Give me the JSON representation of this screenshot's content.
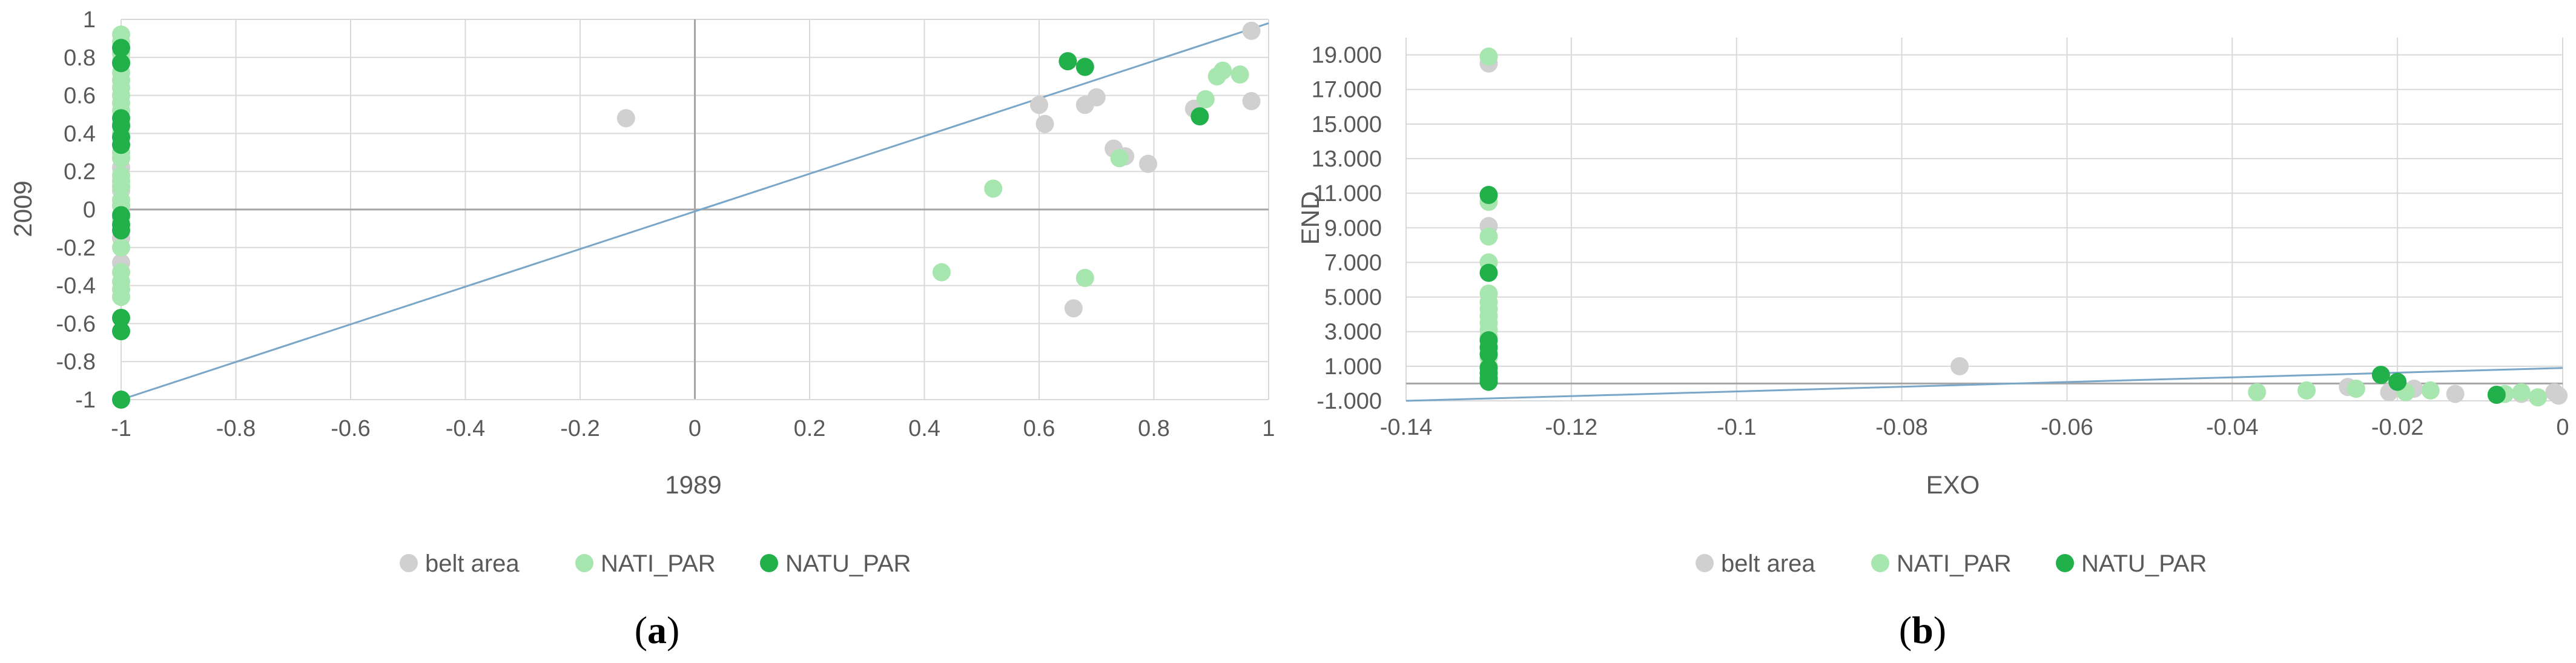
{
  "captions": [
    "a",
    "b"
  ],
  "colors": {
    "belt_area": "#d0d0d0",
    "NATI_PAR": "#a8e6b0",
    "NATU_PAR": "#22b04a",
    "trendline": "#7aa6c8",
    "grid": "#d9d9d9",
    "axis": "#a6a6a6"
  },
  "chart_data": [
    {
      "type": "scatter",
      "xlabel": "1989",
      "ylabel": "2009",
      "xlim": [
        -1,
        1
      ],
      "ylim": [
        -1,
        1
      ],
      "x_ticks": [
        "-1",
        "-0.8",
        "-0.6",
        "-0.4",
        "-0.2",
        "0",
        "0.2",
        "0.4",
        "0.6",
        "0.8",
        "1"
      ],
      "y_ticks": [
        "1",
        "0.8",
        "0.6",
        "0.4",
        "0.2",
        "0",
        "-0.2",
        "-0.4",
        "-0.6",
        "-0.8",
        "-1"
      ],
      "grid": true,
      "legend_position": "bottom",
      "trendline": {
        "x": [
          -1,
          1
        ],
        "y": [
          -1,
          0.98
        ]
      },
      "series": [
        {
          "name": "belt area",
          "color": "#d0d0d0",
          "points": [
            [
              -1,
              -0.28
            ],
            [
              -1,
              -0.15
            ],
            [
              -1,
              0.1
            ],
            [
              -1,
              0.22
            ],
            [
              -0.12,
              0.48
            ],
            [
              0.6,
              0.55
            ],
            [
              0.61,
              0.45
            ],
            [
              0.66,
              -0.52
            ],
            [
              0.68,
              0.55
            ],
            [
              0.7,
              0.59
            ],
            [
              0.73,
              0.32
            ],
            [
              0.75,
              0.28
            ],
            [
              0.79,
              0.24
            ],
            [
              0.87,
              0.53
            ],
            [
              0.97,
              0.57
            ],
            [
              0.97,
              0.94
            ]
          ]
        },
        {
          "name": "NATI_PAR",
          "color": "#a8e6b0",
          "points": [
            [
              -1,
              0.92
            ],
            [
              -1,
              0.88
            ],
            [
              -1,
              0.82
            ],
            [
              -1,
              0.78
            ],
            [
              -1,
              0.72
            ],
            [
              -1,
              0.68
            ],
            [
              -1,
              0.64
            ],
            [
              -1,
              0.6
            ],
            [
              -1,
              0.56
            ],
            [
              -1,
              0.52
            ],
            [
              -1,
              0.45
            ],
            [
              -1,
              0.4
            ],
            [
              -1,
              0.3
            ],
            [
              -1,
              0.27
            ],
            [
              -1,
              0.18
            ],
            [
              -1,
              0.15
            ],
            [
              -1,
              0.12
            ],
            [
              -1,
              0.05
            ],
            [
              -1,
              0.02
            ],
            [
              -1,
              -0.05
            ],
            [
              -1,
              -0.2
            ],
            [
              -1,
              -0.33
            ],
            [
              -1,
              -0.38
            ],
            [
              -1,
              -0.42
            ],
            [
              -1,
              -0.46
            ],
            [
              0.43,
              -0.33
            ],
            [
              0.52,
              0.11
            ],
            [
              0.68,
              -0.36
            ],
            [
              0.74,
              0.27
            ],
            [
              0.89,
              0.58
            ],
            [
              0.91,
              0.7
            ],
            [
              0.92,
              0.73
            ],
            [
              0.95,
              0.71
            ]
          ]
        },
        {
          "name": "NATU_PAR",
          "color": "#22b04a",
          "points": [
            [
              -1,
              0.85
            ],
            [
              -1,
              0.77
            ],
            [
              -1,
              0.48
            ],
            [
              -1,
              0.44
            ],
            [
              -1,
              0.38
            ],
            [
              -1,
              0.34
            ],
            [
              -1,
              -0.03
            ],
            [
              -1,
              -0.08
            ],
            [
              -1,
              -0.11
            ],
            [
              -1,
              -0.57
            ],
            [
              -1,
              -0.64
            ],
            [
              -1,
              -1
            ],
            [
              0.65,
              0.78
            ],
            [
              0.68,
              0.75
            ],
            [
              0.88,
              0.49
            ]
          ]
        }
      ]
    },
    {
      "type": "scatter",
      "xlabel": "EXO",
      "ylabel": "END",
      "xlim": [
        -0.14,
        0
      ],
      "ylim": [
        -1000,
        20000
      ],
      "x_ticks": [
        "-0.14",
        "-0.12",
        "-0.1",
        "-0.08",
        "-0.06",
        "-0.04",
        "-0.02",
        "0"
      ],
      "y_ticks": [
        "19.000",
        "17.000",
        "15.000",
        "13.000",
        "11.000",
        "9.000",
        "7.000",
        "5.000",
        "3.000",
        "1.000",
        "-1.000"
      ],
      "grid": true,
      "legend_position": "bottom",
      "trendline": {
        "x": [
          -0.14,
          0
        ],
        "y": [
          -1000,
          900
        ]
      },
      "series": [
        {
          "name": "belt area",
          "color": "#d0d0d0",
          "points": [
            [
              -0.13,
              18500
            ],
            [
              -0.13,
              9100
            ],
            [
              -0.073,
              1000
            ],
            [
              -0.026,
              -200
            ],
            [
              -0.021,
              -500
            ],
            [
              -0.018,
              -300
            ],
            [
              -0.013,
              -600
            ],
            [
              -0.005,
              -600
            ],
            [
              -0.001,
              -500
            ],
            [
              -0.0005,
              -700
            ]
          ]
        },
        {
          "name": "NATI_PAR",
          "color": "#a8e6b0",
          "points": [
            [
              -0.13,
              18900
            ],
            [
              -0.13,
              10500
            ],
            [
              -0.13,
              8500
            ],
            [
              -0.13,
              7000
            ],
            [
              -0.13,
              5200
            ],
            [
              -0.13,
              4700
            ],
            [
              -0.13,
              4300
            ],
            [
              -0.13,
              3900
            ],
            [
              -0.13,
              3500
            ],
            [
              -0.13,
              3100
            ],
            [
              -0.13,
              2700
            ],
            [
              -0.13,
              2000
            ],
            [
              -0.13,
              1500
            ],
            [
              -0.13,
              1000
            ],
            [
              -0.037,
              -500
            ],
            [
              -0.031,
              -400
            ],
            [
              -0.025,
              -300
            ],
            [
              -0.019,
              -500
            ],
            [
              -0.016,
              -400
            ],
            [
              -0.007,
              -600
            ],
            [
              -0.005,
              -500
            ],
            [
              -0.003,
              -800
            ]
          ]
        },
        {
          "name": "NATU_PAR",
          "color": "#22b04a",
          "points": [
            [
              -0.13,
              10900
            ],
            [
              -0.13,
              6400
            ],
            [
              -0.13,
              2500
            ],
            [
              -0.13,
              2100
            ],
            [
              -0.13,
              1700
            ],
            [
              -0.13,
              900
            ],
            [
              -0.13,
              600
            ],
            [
              -0.13,
              300
            ],
            [
              -0.13,
              100
            ],
            [
              -0.022,
              500
            ],
            [
              -0.02,
              100
            ],
            [
              -0.008,
              -650
            ]
          ]
        }
      ]
    }
  ]
}
